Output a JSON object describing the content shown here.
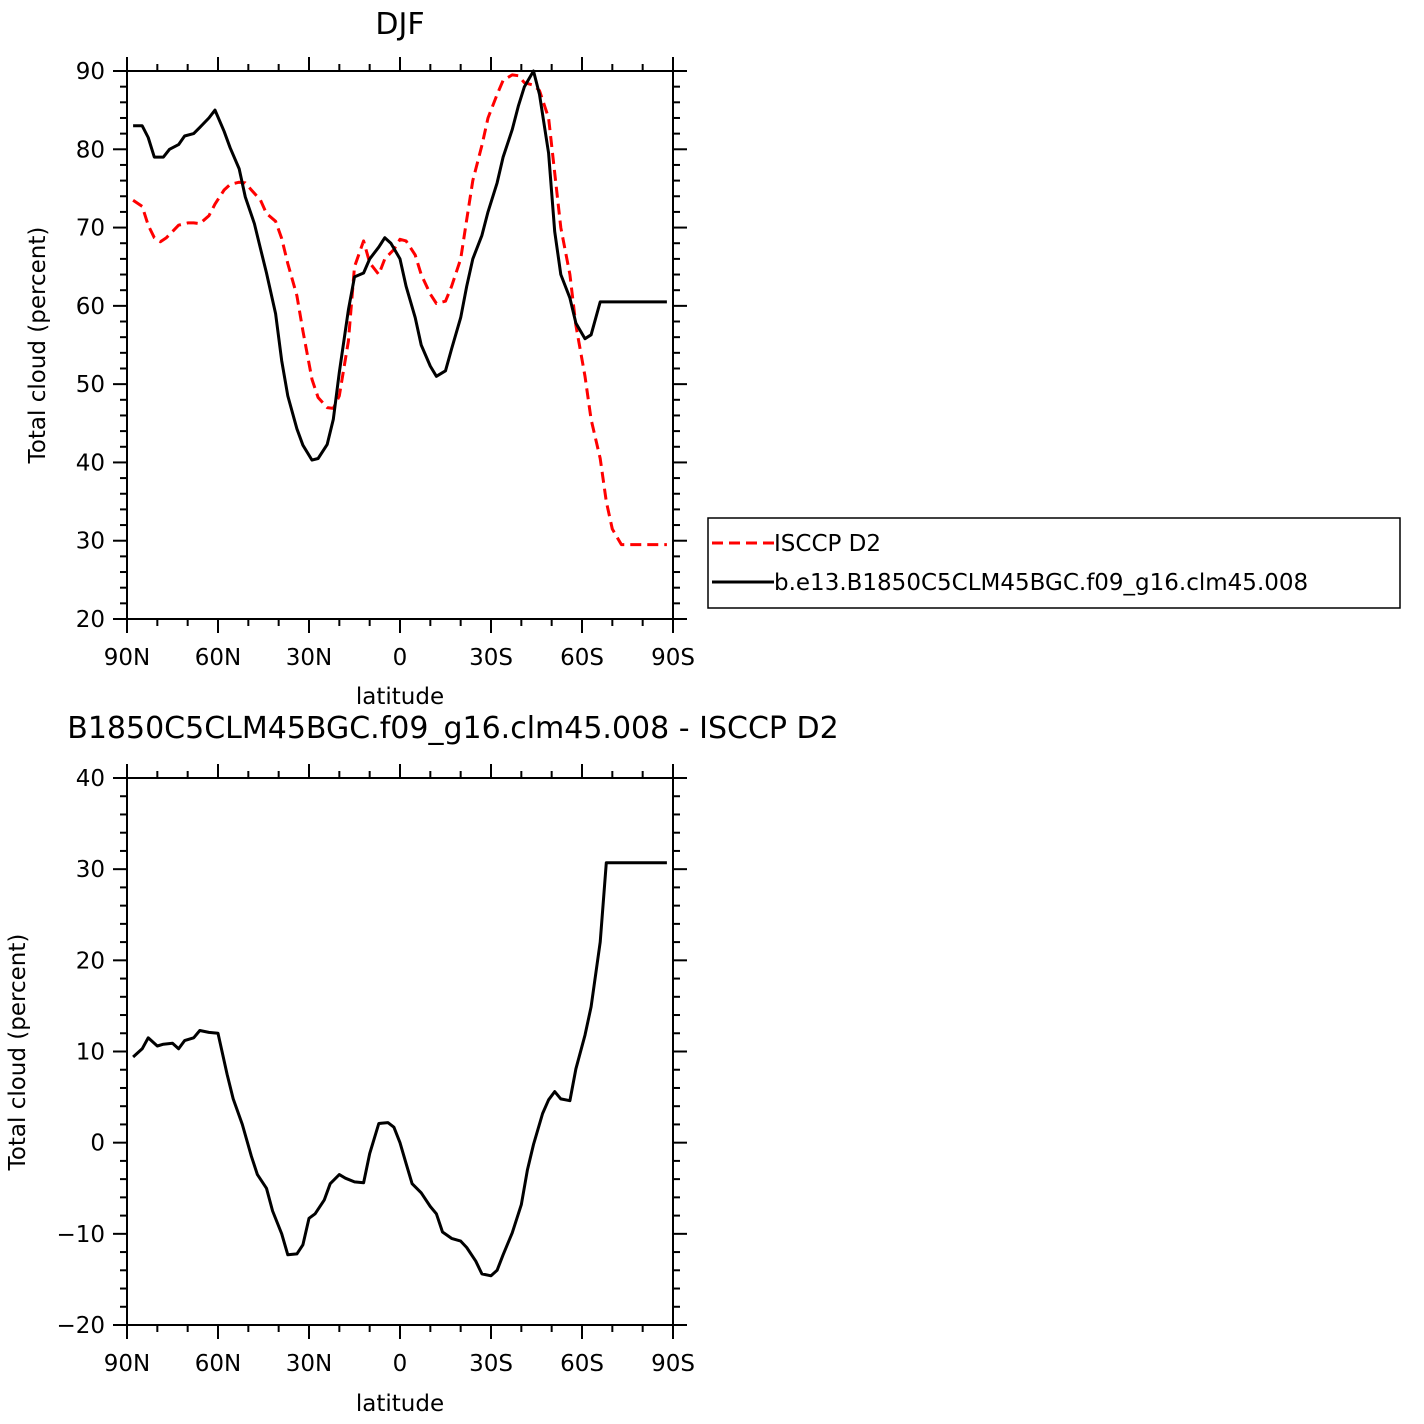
{
  "chart_data": [
    {
      "type": "line",
      "title": "DJF",
      "xlabel": "latitude",
      "ylabel": "Total cloud (percent)",
      "xlim": [
        90,
        -90
      ],
      "ylim": [
        20,
        90
      ],
      "xticks": [
        90,
        60,
        30,
        0,
        -30,
        -60,
        -90
      ],
      "xtick_labels": [
        "90N",
        "60N",
        "30N",
        "0",
        "30S",
        "60S",
        "90S"
      ],
      "yticks": [
        20,
        30,
        40,
        50,
        60,
        70,
        80,
        90
      ],
      "ytick_labels": [
        "20",
        "30",
        "40",
        "50",
        "60",
        "70",
        "80",
        "90"
      ],
      "grid": false,
      "legend_position": "right, outside plot",
      "series": [
        {
          "name": "ISCCP D2",
          "color": "#ff0000",
          "dash": "dashed",
          "x": [
            88,
            85,
            83,
            81,
            79,
            77,
            75,
            73,
            70,
            68,
            66,
            63,
            61,
            58,
            56,
            53,
            51,
            49,
            46,
            44,
            41,
            39,
            37,
            34,
            32,
            29,
            27,
            24,
            22,
            20,
            17,
            15,
            12,
            10,
            7,
            5,
            2,
            0,
            -2,
            -5,
            -7,
            -10,
            -12,
            -15,
            -17,
            -20,
            -22,
            -24,
            -27,
            -29,
            -32,
            -34,
            -37,
            -39,
            -41,
            -44,
            -46,
            -49,
            -51,
            -53,
            -56,
            -58,
            -61,
            -63,
            -66,
            -68,
            -70,
            -73,
            -75,
            -77,
            -80,
            -82,
            -85,
            -88
          ],
          "y": [
            73.5,
            72.7,
            70.3,
            68.7,
            68.2,
            68.7,
            69.5,
            70.3,
            70.6,
            70.6,
            70.5,
            71.5,
            73.0,
            74.8,
            75.5,
            75.8,
            75.7,
            74.8,
            73.5,
            71.8,
            70.8,
            68.6,
            65.4,
            61.3,
            56.8,
            50.6,
            48.3,
            47.0,
            46.9,
            48.5,
            55.5,
            65.0,
            68.3,
            65.5,
            64.0,
            66.0,
            67.2,
            68.5,
            68.3,
            66.5,
            64.0,
            61.5,
            60.3,
            60.6,
            62.5,
            66.0,
            71.0,
            76.0,
            80.5,
            84.0,
            87.0,
            88.8,
            89.5,
            89.4,
            88.5,
            88.2,
            87.5,
            84.0,
            77.0,
            70.0,
            64.0,
            57.5,
            51.0,
            45.5,
            40.5,
            35.0,
            31.5,
            29.5,
            29.5,
            29.5,
            29.5,
            29.5,
            29.5,
            29.5
          ]
        },
        {
          "name": "b.e13.B1850C5CLM45BGC.f09_g16.clm45.008",
          "color": "#000000",
          "dash": "solid",
          "x": [
            88,
            85,
            83,
            81,
            78,
            76,
            73,
            71,
            68,
            66,
            63,
            61,
            58,
            56,
            53,
            51,
            48,
            46,
            44,
            41,
            39,
            37,
            34,
            32,
            29,
            27,
            24,
            22,
            20,
            17,
            15,
            12,
            10,
            7,
            5,
            3,
            0,
            -2,
            -5,
            -7,
            -10,
            -12,
            -15,
            -17,
            -20,
            -22,
            -24,
            -27,
            -29,
            -32,
            -34,
            -37,
            -39,
            -41,
            -44,
            -46,
            -49,
            -51,
            -53,
            -56,
            -58,
            -61,
            -63,
            -66,
            -68,
            -70,
            -73,
            -75,
            -78,
            -80,
            -83,
            -85,
            -88
          ],
          "y": [
            83.0,
            83.0,
            81.5,
            79.0,
            79.0,
            80.0,
            80.6,
            81.7,
            82.0,
            82.8,
            84.0,
            85.0,
            82.3,
            80.2,
            77.5,
            73.9,
            70.5,
            67.3,
            64.2,
            59.0,
            53.0,
            48.5,
            44.3,
            42.2,
            40.3,
            40.5,
            42.3,
            45.5,
            51.5,
            59.5,
            63.7,
            64.2,
            66.0,
            67.5,
            68.7,
            68.0,
            66.0,
            62.5,
            58.5,
            55.0,
            52.3,
            51.0,
            51.7,
            54.5,
            58.5,
            62.5,
            66.0,
            69.0,
            72.0,
            75.7,
            79.0,
            82.5,
            85.5,
            88.0,
            90.0,
            87.0,
            79.5,
            69.5,
            64.0,
            61.0,
            57.8,
            55.8,
            56.3,
            60.5,
            60.5,
            60.5,
            60.5,
            60.5,
            60.5,
            60.5,
            60.5,
            60.5,
            60.5
          ]
        }
      ]
    },
    {
      "type": "line",
      "title": "B1850C5CLM45BGC.f09_g16.clm45.008 - ISCCP D2",
      "xlabel": "latitude",
      "ylabel": "Total cloud (percent)",
      "xlim": [
        90,
        -90
      ],
      "ylim": [
        -20,
        40
      ],
      "xticks": [
        90,
        60,
        30,
        0,
        -30,
        -60,
        -90
      ],
      "xtick_labels": [
        "90N",
        "60N",
        "30N",
        "0",
        "30S",
        "60S",
        "90S"
      ],
      "yticks": [
        -20,
        -10,
        0,
        10,
        20,
        30,
        40
      ],
      "ytick_labels": [
        "−20",
        "−10",
        "0",
        "10",
        "20",
        "30",
        "40"
      ],
      "grid": false,
      "series": [
        {
          "color": "#000000",
          "dash": "solid",
          "x": [
            88,
            85,
            83,
            80,
            78,
            75,
            73,
            71,
            68,
            66,
            63,
            60,
            57,
            55,
            52,
            49,
            47,
            44,
            42,
            39,
            37,
            34,
            32,
            30,
            28,
            25,
            23,
            20,
            18,
            15,
            12,
            10,
            7,
            4,
            2,
            0,
            -2,
            -4,
            -7,
            -10,
            -12,
            -14,
            -17,
            -20,
            -22,
            -25,
            -27,
            -30,
            -32,
            -34,
            -37,
            -40,
            -42,
            -44,
            -47,
            -49,
            -51,
            -53,
            -56,
            -58,
            -61,
            -63,
            -66,
            -68,
            -71,
            -73,
            -76,
            -78,
            -80,
            -83,
            -85,
            -88
          ],
          "y": [
            9.4,
            10.3,
            11.5,
            10.6,
            10.8,
            10.9,
            10.3,
            11.2,
            11.5,
            12.3,
            12.1,
            12.0,
            7.5,
            4.8,
            2.0,
            -1.5,
            -3.5,
            -5.0,
            -7.5,
            -10.0,
            -12.3,
            -12.2,
            -11.2,
            -8.3,
            -7.8,
            -6.3,
            -4.5,
            -3.5,
            -3.9,
            -4.3,
            -4.4,
            -1.2,
            2.1,
            2.2,
            1.7,
            0.0,
            -2.3,
            -4.5,
            -5.5,
            -7.0,
            -7.8,
            -9.8,
            -10.5,
            -10.8,
            -11.5,
            -13.0,
            -14.4,
            -14.6,
            -14.0,
            -12.3,
            -9.9,
            -6.8,
            -3.0,
            -0.2,
            3.2,
            4.7,
            5.6,
            4.8,
            4.6,
            8.1,
            11.8,
            14.9,
            22.0,
            30.7,
            30.7,
            30.7,
            30.7,
            30.7,
            30.7,
            30.7,
            30.7,
            30.7
          ]
        }
      ]
    }
  ]
}
